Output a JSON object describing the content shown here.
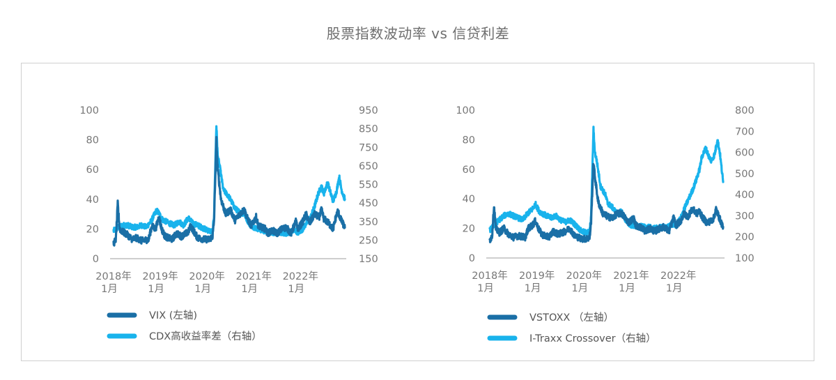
{
  "title": "股票指数波动率 vs 信贷利差",
  "colors": {
    "dark": "#1a6fa6",
    "light": "#19b3ec",
    "axis": "#bdbdbd",
    "frame": "#cfcfcf"
  },
  "chart_data": [
    {
      "type": "line",
      "x_labels": [
        [
          "2018年",
          "1月"
        ],
        [
          "2019年",
          "1月"
        ],
        [
          "2020年",
          "1月"
        ],
        [
          "2021年",
          "1月"
        ],
        [
          "2022年",
          "1月"
        ]
      ],
      "x": [
        "2018-01",
        "2019-01",
        "2020-01",
        "2021-01",
        "2022-01"
      ],
      "ylim_left": [
        0,
        100
      ],
      "yticks_left": [
        "0",
        "20",
        "40",
        "60",
        "80",
        "100"
      ],
      "ylim_right": [
        150,
        950
      ],
      "yticks_right": [
        "150",
        "250",
        "350",
        "450",
        "550",
        "650",
        "750",
        "850",
        "950"
      ],
      "series": [
        {
          "name": "VIX (左轴)",
          "axis": "left",
          "color": "#1a6fa6",
          "anchors": [
            [
              2018.0,
              10
            ],
            [
              2018.05,
              13
            ],
            [
              2018.09,
              37
            ],
            [
              2018.13,
              20
            ],
            [
              2018.2,
              18
            ],
            [
              2018.3,
              16
            ],
            [
              2018.4,
              13
            ],
            [
              2018.5,
              14
            ],
            [
              2018.6,
              12
            ],
            [
              2018.75,
              13
            ],
            [
              2018.82,
              22
            ],
            [
              2018.9,
              20
            ],
            [
              2018.97,
              28
            ],
            [
              2019.03,
              20
            ],
            [
              2019.1,
              15
            ],
            [
              2019.25,
              13
            ],
            [
              2019.35,
              17
            ],
            [
              2019.45,
              15
            ],
            [
              2019.6,
              18
            ],
            [
              2019.65,
              22
            ],
            [
              2019.8,
              14
            ],
            [
              2019.95,
              13
            ],
            [
              2020.05,
              13
            ],
            [
              2020.12,
              15
            ],
            [
              2020.15,
              25
            ],
            [
              2020.2,
              80
            ],
            [
              2020.23,
              60
            ],
            [
              2020.3,
              40
            ],
            [
              2020.4,
              30
            ],
            [
              2020.5,
              33
            ],
            [
              2020.6,
              26
            ],
            [
              2020.7,
              30
            ],
            [
              2020.8,
              33
            ],
            [
              2020.85,
              28
            ],
            [
              2020.95,
              22
            ],
            [
              2021.05,
              28
            ],
            [
              2021.1,
              22
            ],
            [
              2021.25,
              20
            ],
            [
              2021.3,
              17
            ],
            [
              2021.4,
              19
            ],
            [
              2021.5,
              17
            ],
            [
              2021.6,
              20
            ],
            [
              2021.7,
              21
            ],
            [
              2021.8,
              17
            ],
            [
              2021.9,
              25
            ],
            [
              2021.95,
              20
            ],
            [
              2022.05,
              25
            ],
            [
              2022.12,
              30
            ],
            [
              2022.2,
              24
            ],
            [
              2022.3,
              30
            ],
            [
              2022.4,
              28
            ],
            [
              2022.45,
              33
            ],
            [
              2022.5,
              27
            ],
            [
              2022.6,
              24
            ],
            [
              2022.7,
              20
            ],
            [
              2022.75,
              27
            ],
            [
              2022.8,
              32
            ],
            [
              2022.87,
              26
            ],
            [
              2022.95,
              21
            ]
          ]
        },
        {
          "name": "CDX高收益率差（右轴）",
          "axis": "right",
          "color": "#19b3ec",
          "anchors": [
            [
              2018.0,
              300
            ],
            [
              2018.1,
              320
            ],
            [
              2018.2,
              330
            ],
            [
              2018.3,
              330
            ],
            [
              2018.4,
              320
            ],
            [
              2018.5,
              320
            ],
            [
              2018.6,
              330
            ],
            [
              2018.7,
              320
            ],
            [
              2018.8,
              350
            ],
            [
              2018.92,
              410
            ],
            [
              2018.97,
              395
            ],
            [
              2019.05,
              360
            ],
            [
              2019.2,
              340
            ],
            [
              2019.3,
              330
            ],
            [
              2019.4,
              350
            ],
            [
              2019.5,
              330
            ],
            [
              2019.6,
              370
            ],
            [
              2019.7,
              340
            ],
            [
              2019.8,
              330
            ],
            [
              2019.95,
              310
            ],
            [
              2020.05,
              300
            ],
            [
              2020.12,
              295
            ],
            [
              2020.15,
              380
            ],
            [
              2020.2,
              870
            ],
            [
              2020.23,
              700
            ],
            [
              2020.27,
              650
            ],
            [
              2020.35,
              520
            ],
            [
              2020.45,
              490
            ],
            [
              2020.5,
              470
            ],
            [
              2020.6,
              420
            ],
            [
              2020.7,
              400
            ],
            [
              2020.8,
              390
            ],
            [
              2020.9,
              340
            ],
            [
              2021.0,
              320
            ],
            [
              2021.1,
              310
            ],
            [
              2021.2,
              300
            ],
            [
              2021.3,
              295
            ],
            [
              2021.4,
              290
            ],
            [
              2021.5,
              290
            ],
            [
              2021.6,
              290
            ],
            [
              2021.7,
              285
            ],
            [
              2021.8,
              300
            ],
            [
              2021.9,
              300
            ],
            [
              2021.95,
              290
            ],
            [
              2022.05,
              310
            ],
            [
              2022.12,
              340
            ],
            [
              2022.2,
              360
            ],
            [
              2022.3,
              430
            ],
            [
              2022.38,
              500
            ],
            [
              2022.45,
              540
            ],
            [
              2022.5,
              500
            ],
            [
              2022.58,
              560
            ],
            [
              2022.65,
              500
            ],
            [
              2022.7,
              460
            ],
            [
              2022.77,
              510
            ],
            [
              2022.83,
              590
            ],
            [
              2022.88,
              520
            ],
            [
              2022.95,
              470
            ]
          ]
        }
      ],
      "legend": [
        "VIX (左轴)",
        "CDX高收益率差（右轴）"
      ]
    },
    {
      "type": "line",
      "x_labels": [
        [
          "2018年",
          "1月"
        ],
        [
          "2019年",
          "1月"
        ],
        [
          "2020年",
          "1月"
        ],
        [
          "2021年",
          "1月"
        ],
        [
          "2022年",
          "1月"
        ]
      ],
      "x": [
        "2018-01",
        "2019-01",
        "2020-01",
        "2021-01",
        "2022-01"
      ],
      "ylim_left": [
        0,
        100
      ],
      "yticks_left": [
        "0",
        "20",
        "40",
        "60",
        "80",
        "100"
      ],
      "ylim_right": [
        100,
        800
      ],
      "yticks_right": [
        "100",
        "200",
        "300",
        "400",
        "500",
        "600",
        "700",
        "800"
      ],
      "series": [
        {
          "name": "VSTOXX （左轴）",
          "axis": "left",
          "color": "#1a6fa6",
          "anchors": [
            [
              2018.0,
              12
            ],
            [
              2018.05,
              15
            ],
            [
              2018.09,
              35
            ],
            [
              2018.13,
              20
            ],
            [
              2018.2,
              17
            ],
            [
              2018.3,
              20
            ],
            [
              2018.4,
              16
            ],
            [
              2018.5,
              14
            ],
            [
              2018.6,
              15
            ],
            [
              2018.75,
              14
            ],
            [
              2018.82,
              20
            ],
            [
              2018.9,
              22
            ],
            [
              2018.97,
              25
            ],
            [
              2019.03,
              20
            ],
            [
              2019.1,
              16
            ],
            [
              2019.25,
              14
            ],
            [
              2019.35,
              18
            ],
            [
              2019.45,
              16
            ],
            [
              2019.6,
              18
            ],
            [
              2019.7,
              20
            ],
            [
              2019.8,
              15
            ],
            [
              2019.95,
              13
            ],
            [
              2020.05,
              13
            ],
            [
              2020.12,
              14
            ],
            [
              2020.15,
              25
            ],
            [
              2020.2,
              65
            ],
            [
              2020.23,
              55
            ],
            [
              2020.3,
              38
            ],
            [
              2020.4,
              30
            ],
            [
              2020.5,
              28
            ],
            [
              2020.6,
              27
            ],
            [
              2020.7,
              30
            ],
            [
              2020.8,
              30
            ],
            [
              2020.85,
              28
            ],
            [
              2020.95,
              24
            ],
            [
              2021.05,
              27
            ],
            [
              2021.1,
              22
            ],
            [
              2021.25,
              20
            ],
            [
              2021.3,
              18
            ],
            [
              2021.4,
              20
            ],
            [
              2021.5,
              18
            ],
            [
              2021.6,
              20
            ],
            [
              2021.7,
              21
            ],
            [
              2021.8,
              18
            ],
            [
              2021.9,
              27
            ],
            [
              2021.95,
              22
            ],
            [
              2022.05,
              25
            ],
            [
              2022.12,
              30
            ],
            [
              2022.2,
              28
            ],
            [
              2022.3,
              33
            ],
            [
              2022.4,
              30
            ],
            [
              2022.45,
              32
            ],
            [
              2022.5,
              28
            ],
            [
              2022.6,
              24
            ],
            [
              2022.7,
              25
            ],
            [
              2022.75,
              27
            ],
            [
              2022.8,
              33
            ],
            [
              2022.87,
              27
            ],
            [
              2022.95,
              21
            ]
          ]
        },
        {
          "name": "I-Traxx Crossover（右轴）",
          "axis": "right",
          "color": "#19b3ec",
          "anchors": [
            [
              2018.0,
              230
            ],
            [
              2018.1,
              260
            ],
            [
              2018.2,
              280
            ],
            [
              2018.3,
              300
            ],
            [
              2018.4,
              310
            ],
            [
              2018.5,
              300
            ],
            [
              2018.6,
              290
            ],
            [
              2018.7,
              280
            ],
            [
              2018.8,
              310
            ],
            [
              2018.9,
              330
            ],
            [
              2018.97,
              355
            ],
            [
              2019.05,
              320
            ],
            [
              2019.2,
              300
            ],
            [
              2019.3,
              290
            ],
            [
              2019.4,
              300
            ],
            [
              2019.5,
              280
            ],
            [
              2019.6,
              270
            ],
            [
              2019.7,
              280
            ],
            [
              2019.8,
              260
            ],
            [
              2019.95,
              225
            ],
            [
              2020.05,
              220
            ],
            [
              2020.12,
              225
            ],
            [
              2020.15,
              300
            ],
            [
              2020.2,
              710
            ],
            [
              2020.23,
              600
            ],
            [
              2020.27,
              560
            ],
            [
              2020.35,
              440
            ],
            [
              2020.45,
              400
            ],
            [
              2020.5,
              360
            ],
            [
              2020.6,
              340
            ],
            [
              2020.7,
              310
            ],
            [
              2020.8,
              320
            ],
            [
              2020.9,
              270
            ],
            [
              2021.0,
              255
            ],
            [
              2021.1,
              250
            ],
            [
              2021.2,
              250
            ],
            [
              2021.3,
              245
            ],
            [
              2021.4,
              245
            ],
            [
              2021.5,
              240
            ],
            [
              2021.6,
              245
            ],
            [
              2021.7,
              245
            ],
            [
              2021.8,
              250
            ],
            [
              2021.9,
              260
            ],
            [
              2021.95,
              255
            ],
            [
              2022.05,
              290
            ],
            [
              2022.12,
              330
            ],
            [
              2022.2,
              370
            ],
            [
              2022.3,
              420
            ],
            [
              2022.38,
              470
            ],
            [
              2022.45,
              520
            ],
            [
              2022.5,
              580
            ],
            [
              2022.58,
              620
            ],
            [
              2022.65,
              580
            ],
            [
              2022.7,
              560
            ],
            [
              2022.77,
              590
            ],
            [
              2022.83,
              660
            ],
            [
              2022.88,
              600
            ],
            [
              2022.95,
              460
            ]
          ]
        }
      ],
      "legend": [
        "VSTOXX （左轴）",
        "I-Traxx Crossover（右轴）"
      ]
    }
  ]
}
